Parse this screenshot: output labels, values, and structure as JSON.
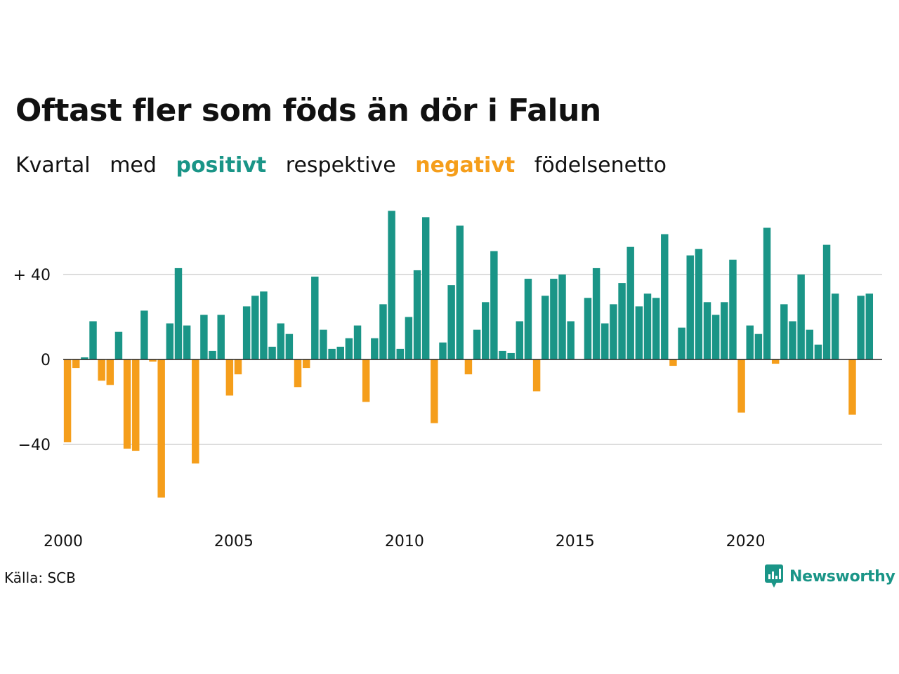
{
  "title": "Oftast fler som föds än dör i Falun",
  "subtitle": {
    "part1": "Kvartal",
    "part2": "med",
    "positive_word": "positivt",
    "part3": "respektive",
    "negative_word": "negativt",
    "part4": "födelsenetto"
  },
  "source": "Källa: SCB",
  "brand": {
    "name": "Newsworthy",
    "icon": "newsworthy-logo-icon"
  },
  "colors": {
    "positive": "#1a9587",
    "negative": "#f59e1b",
    "grid": "#dddddd",
    "text": "#111111"
  },
  "chart_data": {
    "type": "bar",
    "xlim": [
      2000,
      2024
    ],
    "ylim": [
      -65,
      70
    ],
    "y_ticks": [
      {
        "value": 40,
        "label": "+ 40"
      },
      {
        "value": 0,
        "label": "0"
      },
      {
        "value": -40,
        "label": "−40"
      }
    ],
    "x_ticks": [
      {
        "value": 2000,
        "label": "2000"
      },
      {
        "value": 2005,
        "label": "2005"
      },
      {
        "value": 2010,
        "label": "2010"
      },
      {
        "value": 2015,
        "label": "2015"
      },
      {
        "value": 2020,
        "label": "2020"
      }
    ],
    "grid": true,
    "legend": "none",
    "start_quarter": "2000 Q1",
    "values": [
      -39,
      -4,
      1,
      18,
      -10,
      -12,
      13,
      -42,
      -43,
      23,
      -1,
      -65,
      17,
      43,
      16,
      -49,
      21,
      4,
      21,
      -17,
      -7,
      25,
      30,
      32,
      6,
      17,
      12,
      -13,
      -4,
      39,
      14,
      5,
      6,
      10,
      16,
      -20,
      10,
      26,
      70,
      5,
      20,
      42,
      67,
      -30,
      8,
      35,
      63,
      -7,
      14,
      27,
      51,
      4,
      3,
      18,
      38,
      -15,
      30,
      38,
      40,
      18,
      0,
      29,
      43,
      17,
      26,
      36,
      53,
      25,
      31,
      29,
      59,
      -3,
      15,
      49,
      52,
      27,
      21,
      27,
      47,
      -25,
      16,
      12,
      62,
      -2,
      26,
      18,
      40,
      14,
      7,
      54,
      31,
      0,
      -26,
      30,
      31
    ]
  }
}
